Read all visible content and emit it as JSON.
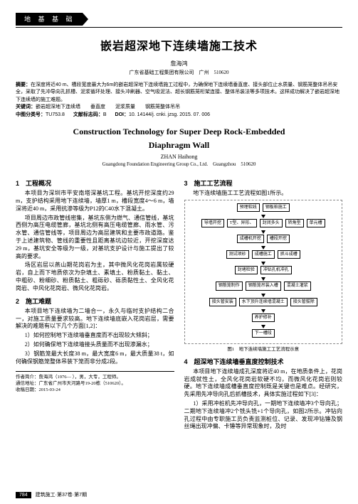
{
  "tag": "地 基 基 础",
  "cn_title": "嵌岩超深地下连续墙施工技术",
  "cn_author": "詹海鸿",
  "cn_affil": "广东省基础工程集团有限公司　广州　510620",
  "abstract_lbl": "摘要：",
  "abstract": "在深度将近40 m、槽段宽度最大为6m的嵌岩超深地下连续墙施工过程中，为确保地下连续墙垂直度、接头部位止水质量、钢筋笼整体吊吊安全，采取了先冲导向孔抓槽、泥浆循环处理、接头冲刷器、空气吸泥法、超长钢筋笼桁架连接、整体吊装法等多项技术。这样成功解决了嵌岩超深地下连续墙的施工难题。",
  "kw_lbl": "关键词：",
  "kw": "嵌岩超深地下连续墙　　垂直度　　泥浆质量　　钢筋笼整体吊吊",
  "clc_lbl": "中图分类号：",
  "clc": "TU753.8",
  "doc_lbl": "文献标志码：",
  "doc": "B",
  "doi_lbl": "DOI：",
  "doi": "10. 14144/j. cnki. jzsg. 2015. 07. 006",
  "en_title1": "Construction Technology for Super Deep Rock-Embedded",
  "en_title2": "Diaphragm Wall",
  "en_author": "ZHAN Haihong",
  "en_affil": "Guangdong Foundation Engineering Group Co., Ltd.　Guangzhou　510620",
  "s1_h": "1　工程概况",
  "s1_p1": "本项目为深圳市平安南塔深基坑工程。基坑开挖深度约29 m，支护结构采用地下连续墙，墙厚1 m，槽段宽度4～6 m，墙深将近40 m，采用抗渗等级为P12的C40水下混凝土。",
  "s1_p2": "项目周边市政管线密集，基坑东侧为燃气、通信管线，基坑西侧为高压电缆管廊，基坑北侧有高压电缆管廊、雨水管、污水管、通信管线等，项目周边为高层建筑和主要市政道路。鉴于上述建筑物、管线的重要性且距离基坑边较近，开挖深度达29 m，基坑安全等级为一级，对基坑支护设计与施工提出了较高的要求。",
  "s1_p3": "场区岩层以燕山期花岗岩为主，其中微风化花岗岩属较硬岩，自上而下地质依次为杂填土、素填土、粉质黏土、黏土、中粗砂、粉细砂、粉质黏土、粗砾砂、砾质黏性土、全风化花岗岩、中风化花岗岩、微风化花岗岩。",
  "s2_h": "2　施工难题",
  "s2_p1": "本项目地下连续墙为二墙合一，永久与临时支护结构二合一，对施工质量要求较高。地下连续墙底嵌入花岗岩层，需要解决的难题有以下几个方面[1,2]：",
  "s2_li1": "1）如何控制地下连续墙垂直度而不出现较大倾斜；",
  "s2_li2": "2）如何确保地下连续墙接头质量而不出现渗漏水；",
  "s2_li3": "3）钢筋笼最大长度38 m，最大宽度6 m，最大质量38 t，如何确保钢筋笼整体吊装下笼而非分成2段。",
  "fn1": "作者简介：詹海鸿（1976— ），男，大专，工程师。",
  "fn2": "通信地址：广东省广州市天河路号19-20栋（510620）。",
  "fn3": "收稿日期：2015-03-24",
  "s3_h": "3　施工工艺流程",
  "s3_p1": "地下连续墙施工工艺流程如图1所示。",
  "flow": {
    "r1": [
      "预埋软线",
      "钢板桩施工"
    ],
    "r2": [
      "导墙开挖",
      "T型、异形、",
      "封闭多头",
      "转角型",
      "单元槽"
    ],
    "r3": [
      "成槽机开挖",
      "槽段开挖"
    ],
    "r4": [
      "测试项砂",
      "成槽施工",
      "抓斗成槽"
    ],
    "r5": [
      "封堵检验",
      "冲钻孔机冲孔"
    ],
    "r6": [
      "钢筋笼制作",
      "钢筋笼吊装入槽",
      "混凝土灌浆"
    ],
    "r7": [
      "接头管安装",
      "水下顶升连续墙混凝土",
      "接头管拔除"
    ],
    "r8": [
      "养护修补"
    ],
    "r9": [
      "下一槽段"
    ]
  },
  "fig1_cap": "图1　地下连续墙施工工艺流程示意",
  "s4_h": "4　超深地下连续墙垂直度控制技术",
  "s4_p1": "本项目地下连续墙成孔深度将近40 m，在地质条件上，花岗岩成就性土，全风化花岗岩软硬不均，而微风化花岗岩则较硬。地下连续墙成槽垂直度控制既是关键也是难点。经研究，先采用先冲导向孔后抓槽技术，具体实施过程如下[3]：",
  "s4_p2": "1）采用冲桩机先冲导向孔，一期地下连续墙冲3个导向孔；二期地下连续墙冲2个铣头铣+1个导向孔，如图2所示。冲钻向孔过程中由专职施工员负责监测桩位、记录、发现冲钻锤及钢丝绳出现冲偏、卡锤等异常现象时，及时",
  "footer_pg": "784",
  "footer_txt": "建筑施工·第37卷·第7期"
}
